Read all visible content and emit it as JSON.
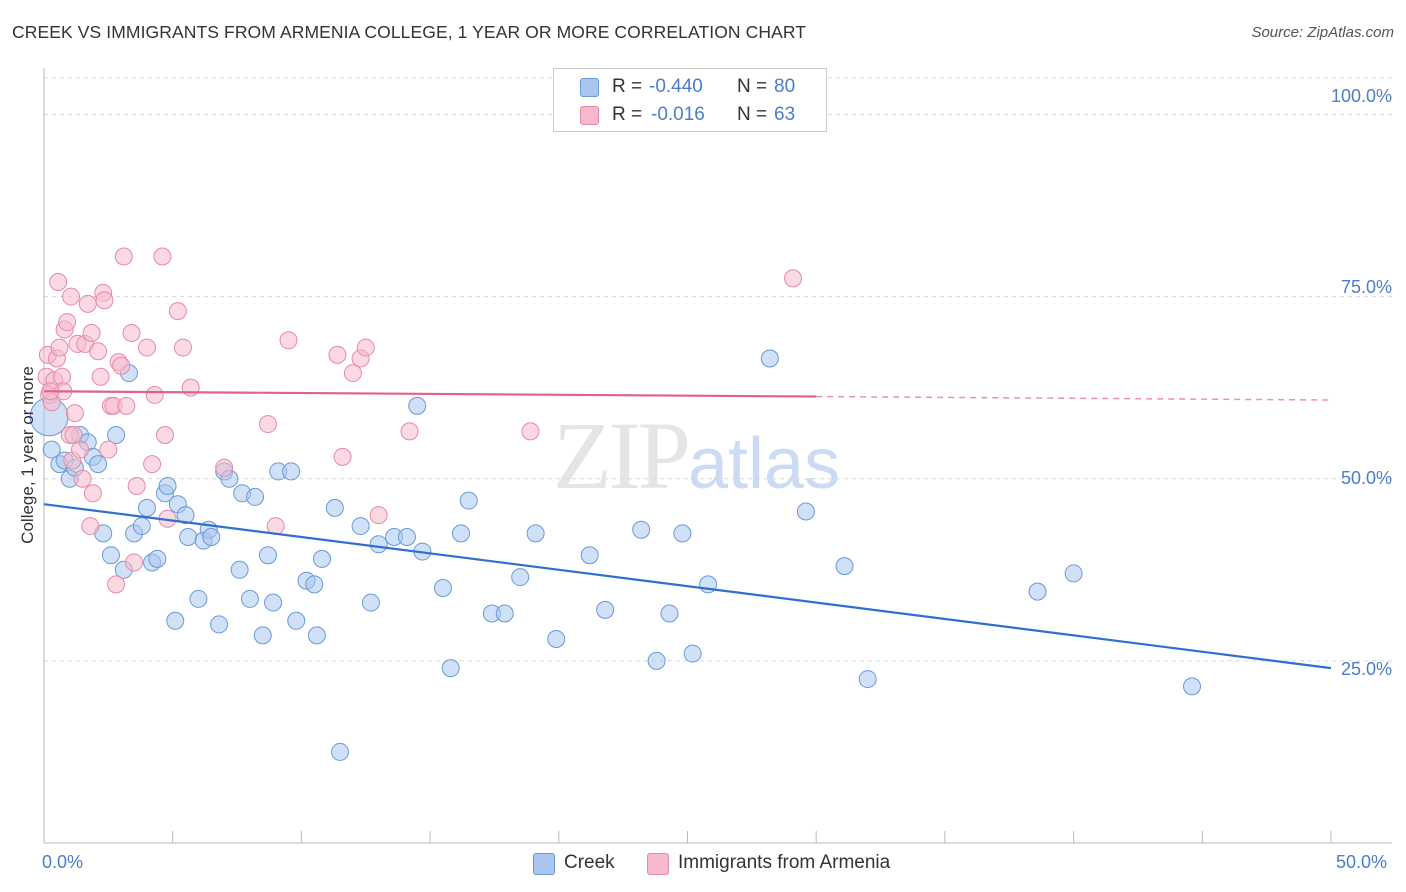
{
  "header": {
    "title": "CREEK VS IMMIGRANTS FROM ARMENIA COLLEGE, 1 YEAR OR MORE CORRELATION CHART",
    "source": "Source: ZipAtlas.com"
  },
  "watermark": {
    "zip": "ZIP",
    "atlas": "atlas"
  },
  "colors": {
    "creek_fill": "#a9c7ee",
    "creek_stroke": "#6a9ad8",
    "creek_line": "#2f6fd0",
    "armenia_fill": "#f6b9cc",
    "armenia_stroke": "#e58aa6",
    "armenia_line": "#e0628a",
    "tick_label": "#4a7dd0",
    "grid": "#d8d8d8"
  },
  "legend_top": {
    "rows": [
      {
        "r_label": "R =",
        "r_value": "-0.440",
        "n_label": "N =",
        "n_value": "80"
      },
      {
        "r_label": "R =",
        "r_value": "-0.016",
        "n_label": "N =",
        "n_value": "63"
      }
    ]
  },
  "legend_bottom": {
    "creek": "Creek",
    "armenia": "Immigrants from Armenia"
  },
  "chart_data": {
    "type": "scatter",
    "title": "CREEK VS IMMIGRANTS FROM ARMENIA COLLEGE, 1 YEAR OR MORE CORRELATION CHART",
    "xlabel": "",
    "ylabel": "College, 1 year or more",
    "xlim": [
      0,
      50
    ],
    "ylim": [
      0,
      105
    ],
    "x_tick_labels": [
      "0.0%",
      "50.0%"
    ],
    "y_ticks": [
      25,
      50,
      75,
      100
    ],
    "y_tick_labels": [
      "25.0%",
      "50.0%",
      "75.0%",
      "100.0%"
    ],
    "grid": true,
    "legend_position": "bottom",
    "series": [
      {
        "name": "Creek",
        "r": -0.44,
        "n": 80,
        "trend": {
          "x0": 0,
          "y0": 46.5,
          "x1": 50,
          "y1": 24
        },
        "points": [
          [
            0.2,
            58.5
          ],
          [
            0.3,
            54
          ],
          [
            0.6,
            52
          ],
          [
            0.8,
            52.5
          ],
          [
            1.0,
            50
          ],
          [
            1.2,
            51.5
          ],
          [
            1.4,
            56
          ],
          [
            1.7,
            55
          ],
          [
            1.9,
            53
          ],
          [
            2.1,
            52
          ],
          [
            2.3,
            42.5
          ],
          [
            2.6,
            39.5
          ],
          [
            2.8,
            56
          ],
          [
            3.1,
            37.5
          ],
          [
            3.3,
            64.5
          ],
          [
            3.5,
            42.5
          ],
          [
            3.8,
            43.5
          ],
          [
            4.0,
            46
          ],
          [
            4.2,
            38.5
          ],
          [
            4.4,
            39
          ],
          [
            4.7,
            48
          ],
          [
            4.8,
            49
          ],
          [
            5.1,
            30.5
          ],
          [
            5.2,
            46.5
          ],
          [
            5.5,
            45
          ],
          [
            5.6,
            42
          ],
          [
            6.0,
            33.5
          ],
          [
            6.2,
            41.5
          ],
          [
            6.4,
            43
          ],
          [
            6.5,
            42
          ],
          [
            6.8,
            30
          ],
          [
            7.0,
            51
          ],
          [
            7.2,
            50
          ],
          [
            7.6,
            37.5
          ],
          [
            7.7,
            48
          ],
          [
            8.0,
            33.5
          ],
          [
            8.2,
            47.5
          ],
          [
            8.5,
            28.5
          ],
          [
            8.7,
            39.5
          ],
          [
            8.9,
            33
          ],
          [
            9.1,
            51
          ],
          [
            9.6,
            51
          ],
          [
            9.8,
            30.5
          ],
          [
            10.2,
            36
          ],
          [
            10.5,
            35.5
          ],
          [
            10.6,
            28.5
          ],
          [
            10.8,
            39
          ],
          [
            11.3,
            46
          ],
          [
            11.5,
            12.5
          ],
          [
            12.3,
            43.5
          ],
          [
            12.7,
            33
          ],
          [
            13.0,
            41
          ],
          [
            13.6,
            42
          ],
          [
            14.1,
            42
          ],
          [
            14.5,
            60
          ],
          [
            14.7,
            40
          ],
          [
            15.5,
            35
          ],
          [
            15.8,
            24
          ],
          [
            16.2,
            42.5
          ],
          [
            16.5,
            47
          ],
          [
            17.4,
            31.5
          ],
          [
            17.9,
            31.5
          ],
          [
            18.5,
            36.5
          ],
          [
            19.1,
            42.5
          ],
          [
            19.9,
            28
          ],
          [
            21.2,
            39.5
          ],
          [
            21.8,
            32
          ],
          [
            23.2,
            43
          ],
          [
            23.8,
            25
          ],
          [
            24.3,
            31.5
          ],
          [
            24.8,
            42.5
          ],
          [
            25.2,
            26
          ],
          [
            25.8,
            35.5
          ],
          [
            28.2,
            66.5
          ],
          [
            29.6,
            45.5
          ],
          [
            31.1,
            38
          ],
          [
            32.0,
            22.5
          ],
          [
            38.6,
            34.5
          ],
          [
            40.0,
            37
          ],
          [
            44.6,
            21.5
          ]
        ]
      },
      {
        "name": "Immigrants from Armenia",
        "r": -0.016,
        "n": 63,
        "trend": {
          "x0": 0,
          "y0": 62,
          "x1": 50,
          "y1": 60.8,
          "solid_until_x": 30
        },
        "points": [
          [
            0.1,
            64
          ],
          [
            0.15,
            67
          ],
          [
            0.2,
            61.5
          ],
          [
            0.3,
            60.5
          ],
          [
            0.4,
            63.5
          ],
          [
            0.5,
            66.5
          ],
          [
            0.55,
            77
          ],
          [
            0.6,
            68
          ],
          [
            0.7,
            64
          ],
          [
            0.75,
            62
          ],
          [
            0.8,
            70.5
          ],
          [
            0.9,
            71.5
          ],
          [
            1.0,
            56
          ],
          [
            1.05,
            75
          ],
          [
            1.1,
            52.5
          ],
          [
            1.15,
            56
          ],
          [
            1.2,
            59
          ],
          [
            1.3,
            68.5
          ],
          [
            1.4,
            54
          ],
          [
            1.5,
            50
          ],
          [
            1.6,
            68.5
          ],
          [
            1.7,
            74
          ],
          [
            1.8,
            43.5
          ],
          [
            1.85,
            70
          ],
          [
            1.9,
            48
          ],
          [
            2.1,
            67.5
          ],
          [
            2.2,
            64
          ],
          [
            2.3,
            75.5
          ],
          [
            2.35,
            74.5
          ],
          [
            2.5,
            54
          ],
          [
            2.6,
            60
          ],
          [
            2.7,
            60
          ],
          [
            2.8,
            35.5
          ],
          [
            2.9,
            66
          ],
          [
            3.0,
            65.5
          ],
          [
            3.1,
            80.5
          ],
          [
            3.2,
            60
          ],
          [
            3.4,
            70
          ],
          [
            3.5,
            38.5
          ],
          [
            3.6,
            49
          ],
          [
            4.0,
            68
          ],
          [
            4.2,
            52
          ],
          [
            4.3,
            61.5
          ],
          [
            4.6,
            80.5
          ],
          [
            4.7,
            56
          ],
          [
            4.8,
            44.5
          ],
          [
            5.2,
            73
          ],
          [
            5.4,
            68
          ],
          [
            5.7,
            62.5
          ],
          [
            7.0,
            51.5
          ],
          [
            8.7,
            57.5
          ],
          [
            9.0,
            43.5
          ],
          [
            9.5,
            69
          ],
          [
            11.4,
            67
          ],
          [
            11.6,
            53
          ],
          [
            12.0,
            64.5
          ],
          [
            12.3,
            66.5
          ],
          [
            12.5,
            68
          ],
          [
            13.0,
            45
          ],
          [
            14.2,
            56.5
          ],
          [
            18.9,
            56.5
          ],
          [
            29.1,
            77.5
          ],
          [
            0.25,
            62
          ]
        ]
      }
    ]
  }
}
